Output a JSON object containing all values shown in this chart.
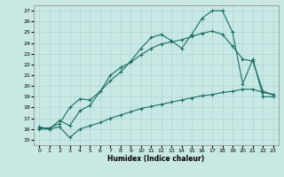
{
  "xlabel": "Humidex (Indice chaleur)",
  "background_color": "#c8e8e4",
  "grid_color": "#a8d0cc",
  "line_color": "#1a6e60",
  "xlim": [
    -0.5,
    23.5
  ],
  "ylim": [
    14.5,
    27.5
  ],
  "xticks": [
    0,
    1,
    2,
    3,
    4,
    5,
    6,
    7,
    8,
    9,
    10,
    11,
    12,
    13,
    14,
    15,
    16,
    17,
    18,
    19,
    20,
    21,
    22,
    23
  ],
  "yticks": [
    15,
    16,
    17,
    18,
    19,
    20,
    21,
    22,
    23,
    24,
    25,
    26,
    27
  ],
  "line1_x": [
    0,
    1,
    2,
    3,
    4,
    5,
    6,
    7,
    8,
    9,
    10,
    11,
    12,
    13,
    14,
    15,
    16,
    17,
    18,
    19,
    20,
    21,
    22,
    23
  ],
  "line1_y": [
    16.2,
    16.0,
    16.8,
    16.3,
    17.7,
    18.2,
    19.5,
    20.5,
    21.3,
    22.3,
    23.5,
    24.5,
    24.8,
    24.2,
    23.5,
    24.8,
    26.3,
    27.0,
    27.0,
    25.0,
    20.2,
    22.5,
    19.0,
    19.0
  ],
  "line2_x": [
    0,
    1,
    2,
    3,
    4,
    5,
    6,
    7,
    8,
    9,
    10,
    11,
    12,
    13,
    14,
    15,
    16,
    17,
    18,
    19,
    20,
    21,
    22,
    23
  ],
  "line2_y": [
    16.1,
    16.1,
    16.5,
    18.0,
    18.8,
    18.7,
    19.5,
    21.0,
    21.7,
    22.2,
    22.9,
    23.5,
    23.9,
    24.1,
    24.3,
    24.6,
    24.9,
    25.1,
    24.8,
    23.7,
    22.5,
    22.3,
    19.5,
    19.2
  ],
  "line3_x": [
    0,
    1,
    2,
    3,
    4,
    5,
    6,
    7,
    8,
    9,
    10,
    11,
    12,
    13,
    14,
    15,
    16,
    17,
    18,
    19,
    20,
    21,
    22,
    23
  ],
  "line3_y": [
    16.0,
    16.0,
    16.2,
    15.2,
    16.0,
    16.3,
    16.6,
    17.0,
    17.3,
    17.6,
    17.9,
    18.1,
    18.3,
    18.5,
    18.7,
    18.9,
    19.1,
    19.2,
    19.4,
    19.5,
    19.7,
    19.7,
    19.4,
    19.2
  ]
}
